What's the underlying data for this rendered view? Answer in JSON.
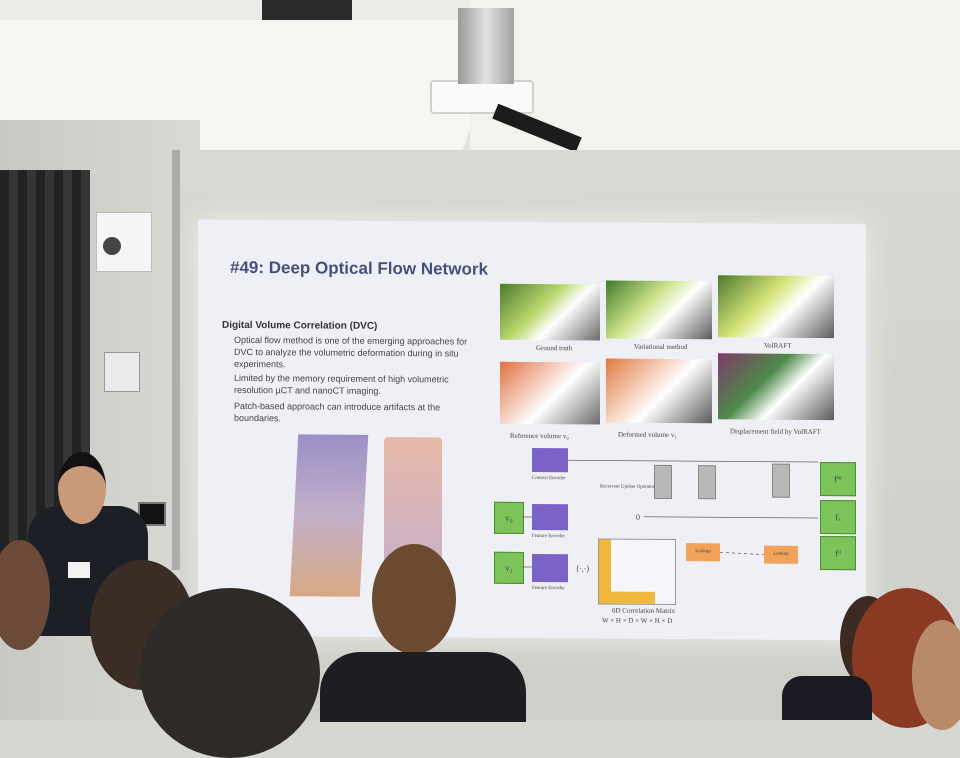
{
  "slide": {
    "title": "#49: Deep Optical Flow Network",
    "section_heading": "Digital Volume Correlation (DVC)",
    "bullets": [
      "Optical flow method is one of the emerging approaches for DVC to analyze the volumetric deformation during in situ experiments.",
      "Limited by the memory requirement of high volumetric resolution µCT and nanoCT imaging.",
      "Patch-based approach can introduce artifacts at the boundaries."
    ],
    "figure_top_captions": [
      "Ground truth",
      "Variational method",
      "VolRAFT"
    ],
    "figure_mid_captions": [
      "Reference volume v₀",
      "Deformed volume v₁",
      "Displacement field by VolRAFT"
    ],
    "diagram": {
      "input_0": "v₀",
      "input_1": "v₁",
      "context_encoder": "Context Encoder",
      "feature_encoder_top": "Feature Encoder",
      "feature_encoder_bottom": "Feature Encoder",
      "update_operator": "Recurrent Update Operator",
      "zero": "0",
      "dot_op": "⟨·,·⟩",
      "lookup_1": "Lookup",
      "lookup_2": "Lookup",
      "corr_label": "6D Correlation Matrix",
      "corr_dims": "W × H × D × W × H × D",
      "out_w": "fᵂ",
      "out_y": "fₓ",
      "out_d": "fᵈ"
    }
  },
  "badge": {
    "text": ""
  },
  "colors": {
    "title": "#48507a",
    "green_block": "#7cc35a",
    "purple_block": "#7a62c7",
    "orange_block": "#f3a25a"
  }
}
